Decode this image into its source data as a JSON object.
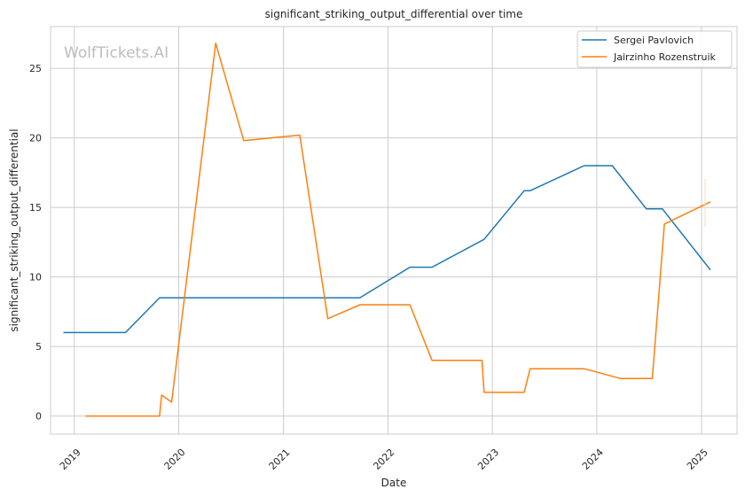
{
  "chart_data": {
    "type": "line",
    "title": "significant_striking_output_differential over time",
    "xlabel": "Date",
    "ylabel": "significant_striking_output_differential",
    "watermark": "WolfTickets.AI",
    "x_ticks": [
      "2019",
      "2020",
      "2021",
      "2022",
      "2023",
      "2024",
      "2025"
    ],
    "y_ticks": [
      "0",
      "5",
      "10",
      "15",
      "20",
      "25"
    ],
    "xlim": [
      "2018-10-10",
      "2025-05-05"
    ],
    "ylim": [
      -1.3,
      28.0
    ],
    "grid": true,
    "legend_position": "top-right",
    "series": [
      {
        "name": "Sergei Pavlovich",
        "color": "#1f77b4",
        "points": [
          [
            "2018-11-24",
            6.0
          ],
          [
            "2019-06-29",
            6.0
          ],
          [
            "2019-10-26",
            8.5
          ],
          [
            "2021-09-25",
            8.5
          ],
          [
            "2022-03-19",
            10.7
          ],
          [
            "2022-06-04",
            10.7
          ],
          [
            "2022-12-03",
            12.7
          ],
          [
            "2023-04-22",
            16.2
          ],
          [
            "2023-05-13",
            16.2
          ],
          [
            "2023-11-18",
            18.0
          ],
          [
            "2024-02-24",
            18.0
          ],
          [
            "2024-06-22",
            14.9
          ],
          [
            "2024-08-17",
            14.9
          ],
          [
            "2025-02-01",
            10.5
          ]
        ]
      },
      {
        "name": "Jairzinho Rozenstruik",
        "color": "#ff7f0e",
        "points": [
          [
            "2019-02-09",
            0.0
          ],
          [
            "2019-10-26",
            0.0
          ],
          [
            "2019-11-02",
            1.5
          ],
          [
            "2019-12-07",
            1.0
          ],
          [
            "2020-05-09",
            26.8
          ],
          [
            "2020-08-15",
            19.8
          ],
          [
            "2021-02-27",
            20.2
          ],
          [
            "2021-06-05",
            7.0
          ],
          [
            "2021-09-25",
            8.0
          ],
          [
            "2022-03-19",
            8.0
          ],
          [
            "2022-06-04",
            4.0
          ],
          [
            "2022-11-26",
            4.0
          ],
          [
            "2022-12-03",
            1.7
          ],
          [
            "2023-04-22",
            1.7
          ],
          [
            "2023-05-13",
            3.4
          ],
          [
            "2023-11-18",
            3.4
          ],
          [
            "2024-03-23",
            2.7
          ],
          [
            "2024-07-13",
            2.7
          ],
          [
            "2024-08-24",
            13.8
          ],
          [
            "2025-02-01",
            15.4
          ]
        ]
      }
    ]
  }
}
